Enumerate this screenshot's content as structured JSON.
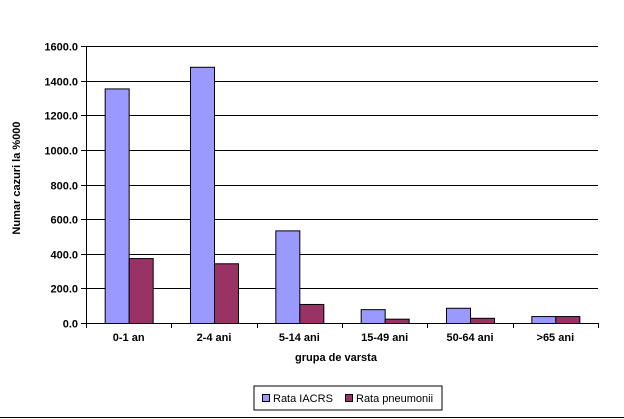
{
  "chart_data": {
    "type": "bar",
    "title": "",
    "xlabel": "grupa de varsta",
    "ylabel": "Numar cazuri la %000",
    "ylim": [
      0,
      1600
    ],
    "yticks": [
      "0.0",
      "200.0",
      "400.0",
      "600.0",
      "800.0",
      "1000.0",
      "1200.0",
      "1400.0",
      "1600.0"
    ],
    "grid": "horizontal",
    "legend": "bottom",
    "categories": [
      "0-1 an",
      "2-4 ani",
      "5-14 ani",
      "15-49 ani",
      "50-64 ani",
      ">65 ani"
    ],
    "series": [
      {
        "name": "Rata IACRS",
        "color": "#9999ff",
        "values": [
          1355,
          1480,
          535,
          80,
          88,
          40
        ]
      },
      {
        "name": "Rata pneumonii",
        "color": "#993366",
        "values": [
          375,
          345,
          110,
          25,
          30,
          40
        ]
      }
    ]
  }
}
